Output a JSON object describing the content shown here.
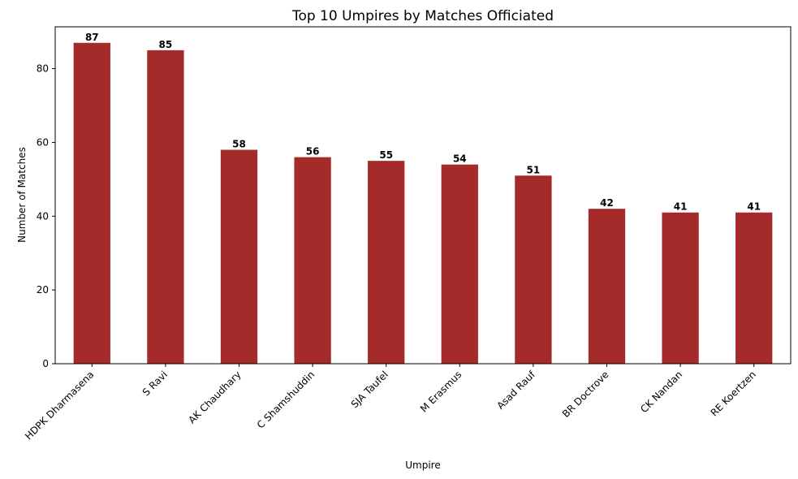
{
  "chart_data": {
    "type": "bar",
    "title": "Top 10 Umpires by Matches Officiated",
    "xlabel": "Umpire",
    "ylabel": "Number of Matches",
    "categories": [
      "HDPK Dharmasena",
      "S Ravi",
      "AK Chaudhary",
      "C Shamshuddin",
      "SJA Taufel",
      "M Erasmus",
      "Asad Rauf",
      "BR Doctrove",
      "CK Nandan",
      "RE Koertzen"
    ],
    "values": [
      87,
      85,
      58,
      56,
      55,
      54,
      51,
      42,
      41,
      41
    ],
    "ylim": [
      0,
      91.35
    ],
    "yticks": [
      0,
      20,
      40,
      60,
      80
    ],
    "bar_color": "#a52a2a",
    "data_labels": true,
    "grid": false,
    "legend": "none"
  }
}
